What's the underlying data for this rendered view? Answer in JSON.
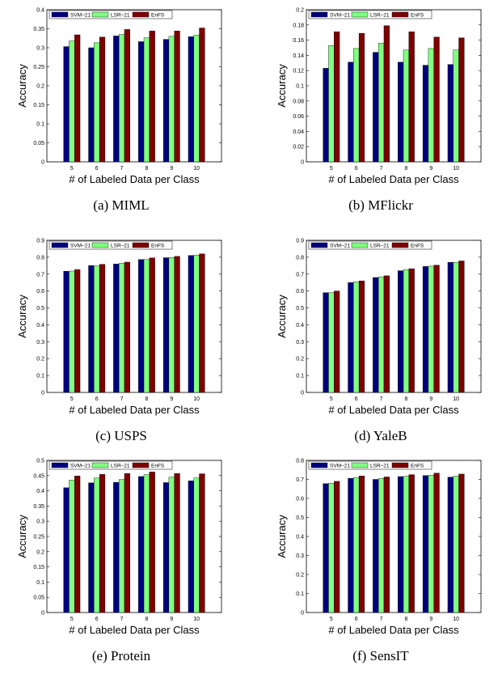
{
  "colors": {
    "svm": "#00007f",
    "lsr": "#7fff7f",
    "enfs": "#7f0000"
  },
  "chart_data": [
    {
      "type": "bar",
      "caption": "(a) MIML",
      "categories": [
        "5",
        "6",
        "7",
        "8",
        "9",
        "10"
      ],
      "series": [
        {
          "name": "SVM–21",
          "values": [
            0.303,
            0.3,
            0.331,
            0.316,
            0.322,
            0.329
          ]
        },
        {
          "name": "LSR–21",
          "values": [
            0.318,
            0.313,
            0.335,
            0.326,
            0.33,
            0.333
          ]
        },
        {
          "name": "EnFS",
          "values": [
            0.334,
            0.328,
            0.348,
            0.344,
            0.344,
            0.352
          ]
        }
      ],
      "xlabel": "# of Labeled Data per Class",
      "ylabel": "Accuracy",
      "ylim": [
        0,
        0.4
      ],
      "yticks": [
        "0",
        "0.05",
        "0.1",
        "0.15",
        "0.2",
        "0.25",
        "0.3",
        "0.35",
        "0.4"
      ],
      "legend": "top"
    },
    {
      "type": "bar",
      "caption": "(b) MFlickr",
      "categories": [
        "5",
        "6",
        "7",
        "8",
        "9",
        "10"
      ],
      "series": [
        {
          "name": "SVM–21",
          "values": [
            0.123,
            0.131,
            0.144,
            0.131,
            0.127,
            0.128
          ]
        },
        {
          "name": "LSR–21",
          "values": [
            0.153,
            0.149,
            0.156,
            0.147,
            0.149,
            0.147
          ]
        },
        {
          "name": "EnFS",
          "values": [
            0.171,
            0.169,
            0.179,
            0.171,
            0.164,
            0.163
          ]
        }
      ],
      "xlabel": "# of Labeled Data per Class",
      "ylabel": "Accuracy",
      "ylim": [
        0,
        0.2
      ],
      "yticks": [
        "0",
        "0.02",
        "0.04",
        "0.06",
        "0.08",
        "0.1",
        "0.12",
        "0.14",
        "0.16",
        "0.18",
        "0.2"
      ],
      "legend": "top"
    },
    {
      "type": "bar",
      "caption": "(c) USPS",
      "categories": [
        "5",
        "6",
        "7",
        "8",
        "9",
        "10"
      ],
      "series": [
        {
          "name": "SVM–21",
          "values": [
            0.717,
            0.751,
            0.76,
            0.786,
            0.797,
            0.81
          ]
        },
        {
          "name": "LSR–21",
          "values": [
            0.718,
            0.748,
            0.764,
            0.786,
            0.798,
            0.812
          ]
        },
        {
          "name": "EnFS",
          "values": [
            0.727,
            0.758,
            0.771,
            0.796,
            0.805,
            0.82
          ]
        }
      ],
      "xlabel": "# of Labeled Data per Class",
      "ylabel": "Accuracy",
      "ylim": [
        0,
        0.9
      ],
      "yticks": [
        "0",
        "0.1",
        "0.2",
        "0.3",
        "0.4",
        "0.5",
        "0.6",
        "0.7",
        "0.8",
        "0.9"
      ],
      "legend": "top"
    },
    {
      "type": "bar",
      "caption": "(d) YaleB",
      "categories": [
        "5",
        "6",
        "7",
        "8",
        "9",
        "10"
      ],
      "series": [
        {
          "name": "SVM–21",
          "values": [
            0.59,
            0.65,
            0.68,
            0.72,
            0.745,
            0.77
          ]
        },
        {
          "name": "LSR–21",
          "values": [
            0.59,
            0.654,
            0.684,
            0.726,
            0.747,
            0.77
          ]
        },
        {
          "name": "EnFS",
          "values": [
            0.6,
            0.66,
            0.69,
            0.732,
            0.753,
            0.778
          ]
        }
      ],
      "xlabel": "# of Labeled Data per Class",
      "ylabel": "Accuracy",
      "ylim": [
        0,
        0.9
      ],
      "yticks": [
        "0",
        "0.1",
        "0.2",
        "0.3",
        "0.4",
        "0.5",
        "0.6",
        "0.7",
        "0.8",
        "0.9"
      ],
      "legend": "top"
    },
    {
      "type": "bar",
      "caption": "(e) Protein",
      "categories": [
        "5",
        "6",
        "7",
        "8",
        "9",
        "10"
      ],
      "series": [
        {
          "name": "SVM–21",
          "values": [
            0.41,
            0.426,
            0.428,
            0.447,
            0.427,
            0.433
          ]
        },
        {
          "name": "LSR–21",
          "values": [
            0.435,
            0.442,
            0.437,
            0.453,
            0.445,
            0.442
          ]
        },
        {
          "name": "EnFS",
          "values": [
            0.449,
            0.454,
            0.457,
            0.462,
            0.457,
            0.456
          ]
        }
      ],
      "xlabel": "# of Labeled Data per Class",
      "ylabel": "Accuracy",
      "ylim": [
        0,
        0.5
      ],
      "yticks": [
        "0",
        "0.05",
        "0.1",
        "0.15",
        "0.2",
        "0.25",
        "0.3",
        "0.35",
        "0.4",
        "0.45",
        "0.5"
      ],
      "legend": "top"
    },
    {
      "type": "bar",
      "caption": "(f) SensIT",
      "categories": [
        "5",
        "6",
        "7",
        "8",
        "9",
        "10"
      ],
      "series": [
        {
          "name": "SVM–21",
          "values": [
            0.678,
            0.706,
            0.7,
            0.715,
            0.72,
            0.712
          ]
        },
        {
          "name": "LSR–21",
          "values": [
            0.68,
            0.71,
            0.705,
            0.716,
            0.722,
            0.717
          ]
        },
        {
          "name": "EnFS",
          "values": [
            0.69,
            0.718,
            0.713,
            0.725,
            0.733,
            0.728
          ]
        }
      ],
      "xlabel": "# of Labeled Data per Class",
      "ylabel": "Accuracy",
      "ylim": [
        0,
        0.8
      ],
      "yticks": [
        "0",
        "0.1",
        "0.2",
        "0.3",
        "0.4",
        "0.5",
        "0.6",
        "0.7",
        "0.8"
      ],
      "legend": "top"
    }
  ]
}
